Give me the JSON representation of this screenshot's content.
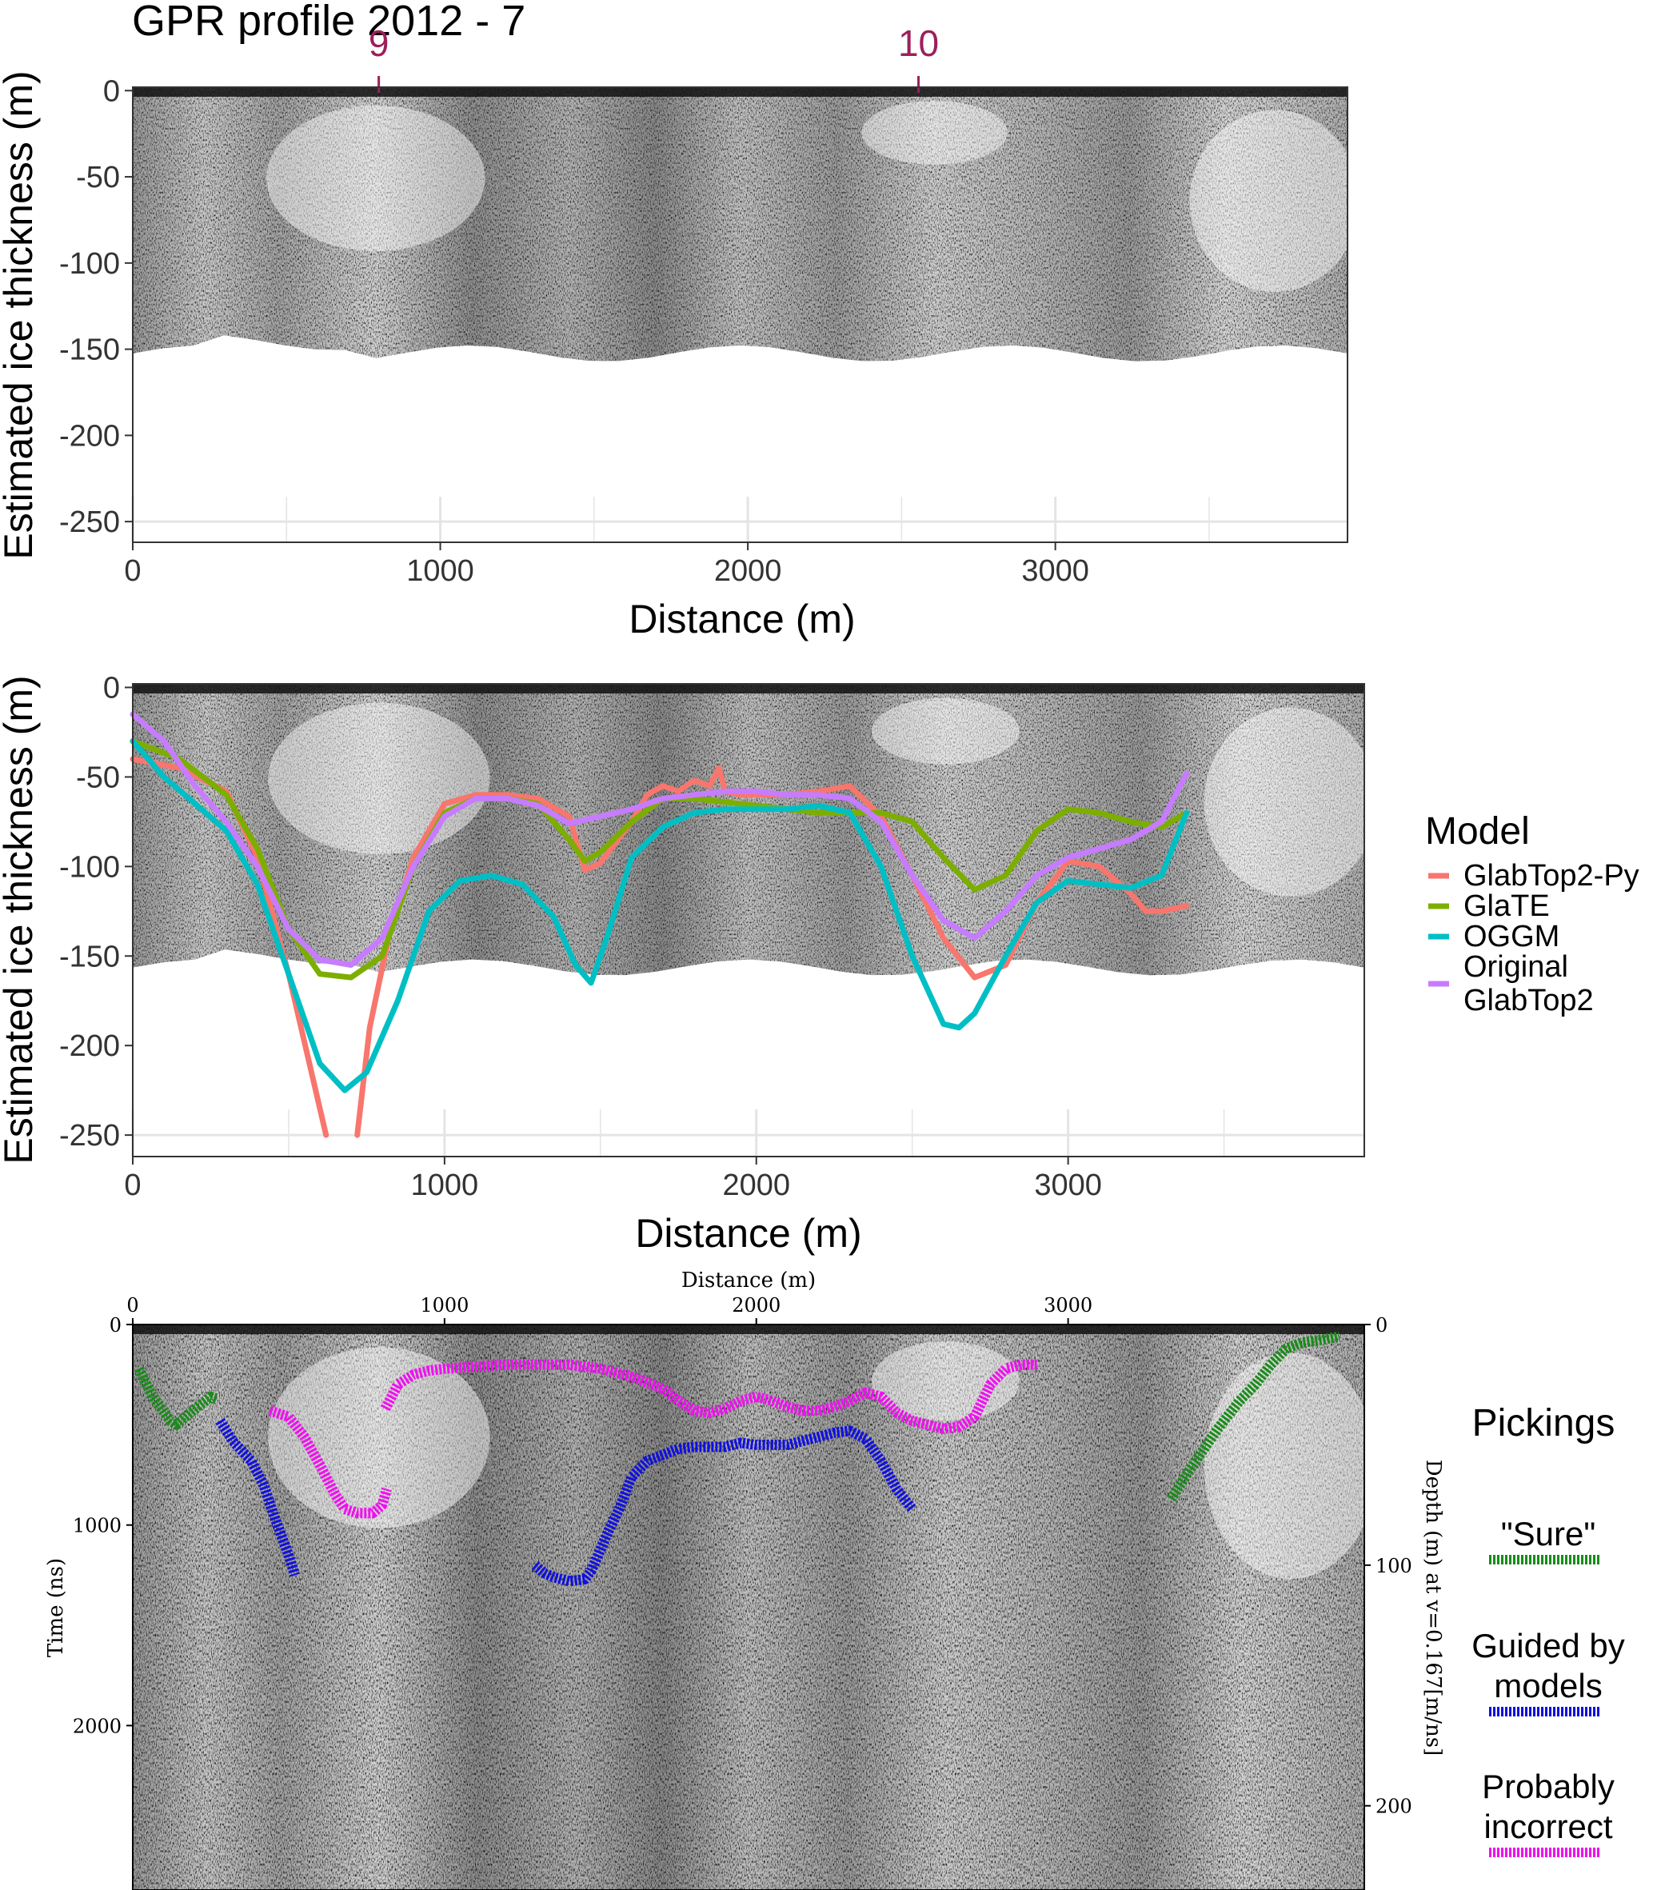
{
  "title": "GPR profile 2012 - 7",
  "colors": {
    "GlabTop2-Py": "#f8766d",
    "GlaTE": "#7cae00",
    "OGGM": "#00bfc4",
    "Original GlabTop2": "#c77cff",
    "sure": "#1a8c1a",
    "guided": "#1010e0",
    "incorrect": "#f010f0",
    "marker": "#9c1f5a"
  },
  "chart_data": [
    {
      "type": "heatmap",
      "title": "GPR profile 2012 - 7",
      "xlabel": "Distance (m)",
      "ylabel": "Estimated ice thickness (m)",
      "xlim": [
        0,
        3950
      ],
      "ylim": [
        -262,
        2
      ],
      "xticks": [
        "0",
        "1000",
        "2000",
        "3000"
      ],
      "yticks": [
        "0",
        "-50",
        "-100",
        "-150",
        "-200",
        "-250"
      ],
      "annotations": [
        {
          "label": "9",
          "x": 800
        },
        {
          "label": "10",
          "x": 2555
        }
      ],
      "grid": true
    },
    {
      "type": "line",
      "xlabel": "Distance (m)",
      "ylabel": "Estimated ice thickness (m)",
      "xlim": [
        0,
        3950
      ],
      "ylim": [
        -262,
        2
      ],
      "xticks": [
        "0",
        "1000",
        "2000",
        "3000"
      ],
      "yticks": [
        "0",
        "-50",
        "-100",
        "-150",
        "-200",
        "-250"
      ],
      "legend_title": "Model",
      "legend_position": "right",
      "series": [
        {
          "name": "GlabTop2-Py",
          "x": [
            0,
            150,
            300,
            400,
            500,
            580,
            620
          ],
          "y": [
            -40,
            -45,
            -58,
            -95,
            -160,
            -220,
            -250
          ]
        },
        {
          "name": "GlabTop2-Py",
          "x": [
            720,
            760,
            820,
            900,
            1000,
            1100,
            1200,
            1300,
            1400,
            1450,
            1500,
            1600,
            1650,
            1700,
            1750,
            1800,
            1850,
            1880,
            1900,
            1950,
            2000,
            2100,
            2200,
            2300,
            2400,
            2500,
            2600,
            2700,
            2800,
            2900,
            3000,
            3100,
            3200,
            3250,
            3300,
            3380
          ],
          "y": [
            -250,
            -190,
            -140,
            -95,
            -65,
            -60,
            -60,
            -62,
            -72,
            -102,
            -98,
            -75,
            -60,
            -55,
            -58,
            -52,
            -55,
            -45,
            -58,
            -60,
            -60,
            -60,
            -58,
            -55,
            -72,
            -105,
            -140,
            -162,
            -155,
            -120,
            -97,
            -100,
            -115,
            -125,
            -125,
            -122
          ]
        },
        {
          "name": "GlaTE",
          "x": [
            0,
            150,
            300,
            400,
            500,
            600,
            700,
            800,
            900,
            1000,
            1100,
            1200,
            1300,
            1400,
            1450,
            1500,
            1600,
            1700,
            1800,
            1900,
            2000,
            2100,
            2200,
            2300,
            2400,
            2500,
            2600,
            2700,
            2800,
            2900,
            3000,
            3100,
            3200,
            3300,
            3380
          ],
          "y": [
            -30,
            -40,
            -60,
            -90,
            -135,
            -160,
            -162,
            -150,
            -100,
            -70,
            -62,
            -62,
            -65,
            -85,
            -97,
            -92,
            -75,
            -62,
            -62,
            -64,
            -66,
            -68,
            -70,
            -70,
            -70,
            -75,
            -95,
            -113,
            -105,
            -80,
            -68,
            -70,
            -75,
            -78,
            -70
          ]
        },
        {
          "name": "OGGM",
          "x": [
            0,
            100,
            200,
            300,
            400,
            500,
            600,
            680,
            750,
            850,
            950,
            1050,
            1150,
            1250,
            1350,
            1420,
            1470,
            1520,
            1600,
            1700,
            1800,
            1900,
            2000,
            2100,
            2200,
            2300,
            2400,
            2500,
            2600,
            2650,
            2700,
            2800,
            2900,
            3000,
            3100,
            3200,
            3300,
            3380
          ],
          "y": [
            -30,
            -50,
            -65,
            -80,
            -110,
            -160,
            -210,
            -225,
            -215,
            -175,
            -125,
            -108,
            -105,
            -110,
            -128,
            -155,
            -165,
            -140,
            -95,
            -78,
            -70,
            -68,
            -68,
            -68,
            -66,
            -70,
            -100,
            -150,
            -188,
            -190,
            -182,
            -150,
            -120,
            -108,
            -110,
            -112,
            -105,
            -70
          ]
        },
        {
          "name": "Original GlabTop2",
          "x": [
            0,
            100,
            200,
            300,
            400,
            500,
            600,
            700,
            800,
            900,
            1000,
            1100,
            1200,
            1300,
            1400,
            1500,
            1600,
            1700,
            1800,
            1900,
            2000,
            2100,
            2200,
            2300,
            2400,
            2500,
            2600,
            2700,
            2800,
            2900,
            3000,
            3100,
            3200,
            3300,
            3380
          ],
          "y": [
            -15,
            -30,
            -55,
            -75,
            -100,
            -135,
            -152,
            -155,
            -140,
            -100,
            -72,
            -62,
            -62,
            -66,
            -76,
            -72,
            -68,
            -62,
            -60,
            -58,
            -58,
            -60,
            -60,
            -62,
            -75,
            -105,
            -130,
            -140,
            -125,
            -105,
            -95,
            -90,
            -85,
            -75,
            -48
          ]
        }
      ],
      "grid": true
    },
    {
      "type": "scatter",
      "xlabel": "Distance (m)",
      "ylabel": "Time (ns)",
      "y2label": "Depth (m) at v=0.167[m/ns]",
      "xlim": [
        0,
        3950
      ],
      "ylim": [
        2820,
        0
      ],
      "y2lim": [
        235,
        0
      ],
      "xticks": [
        "0",
        "1000",
        "2000",
        "3000"
      ],
      "yticks": [
        "0",
        "1000",
        "2000"
      ],
      "y2ticks": [
        "0",
        "100",
        "200"
      ],
      "legend_title": "Pickings",
      "legend_position": "right",
      "series": [
        {
          "name": "\"Sure\"",
          "x": [
            20,
            60,
            120,
            140,
            200,
            250,
            270
          ],
          "y": [
            220,
            350,
            480,
            500,
            420,
            360,
            370
          ]
        },
        {
          "name": "\"Sure\"",
          "x": [
            3330,
            3400,
            3480,
            3550,
            3600,
            3650,
            3700,
            3750,
            3800,
            3870
          ],
          "y": [
            870,
            700,
            520,
            380,
            300,
            200,
            120,
            90,
            80,
            60
          ]
        },
        {
          "name": "Guided by models",
          "x": [
            280,
            320,
            380,
            420,
            450,
            500,
            520
          ],
          "y": [
            480,
            580,
            680,
            800,
            940,
            1150,
            1250
          ]
        },
        {
          "name": "Guided by models",
          "x": [
            1290,
            1320,
            1350,
            1400,
            1450,
            1470,
            1490,
            1520,
            1560,
            1600,
            1650,
            1700,
            1750,
            1800,
            1900,
            1950,
            2000,
            2100,
            2150,
            2200,
            2250,
            2300,
            2350,
            2400,
            2450,
            2500
          ],
          "y": [
            1200,
            1240,
            1260,
            1280,
            1270,
            1230,
            1160,
            1050,
            920,
            760,
            680,
            650,
            620,
            610,
            610,
            590,
            600,
            600,
            580,
            560,
            540,
            530,
            570,
            680,
            820,
            920
          ]
        },
        {
          "name": "Probably incorrect",
          "x": [
            440,
            500,
            550,
            600,
            650,
            680,
            720,
            770,
            800,
            815
          ],
          "y": [
            430,
            460,
            560,
            700,
            850,
            920,
            940,
            940,
            900,
            820
          ]
        },
        {
          "name": "Probably incorrect",
          "x": [
            810,
            850,
            900,
            950,
            1000,
            1100,
            1200,
            1300,
            1400,
            1500,
            1600,
            1700,
            1750,
            1800,
            1850,
            1900,
            1950,
            2000,
            2050,
            2100,
            2150,
            2200,
            2250,
            2300,
            2350,
            2400,
            2450,
            2500,
            2550,
            2600,
            2650,
            2700,
            2750,
            2800,
            2850,
            2900
          ],
          "y": [
            420,
            300,
            250,
            230,
            220,
            210,
            200,
            200,
            200,
            220,
            260,
            320,
            380,
            430,
            440,
            420,
            380,
            360,
            380,
            410,
            430,
            430,
            410,
            380,
            340,
            360,
            440,
            480,
            500,
            520,
            510,
            460,
            300,
            220,
            200,
            200
          ]
        }
      ],
      "grid": false
    }
  ]
}
